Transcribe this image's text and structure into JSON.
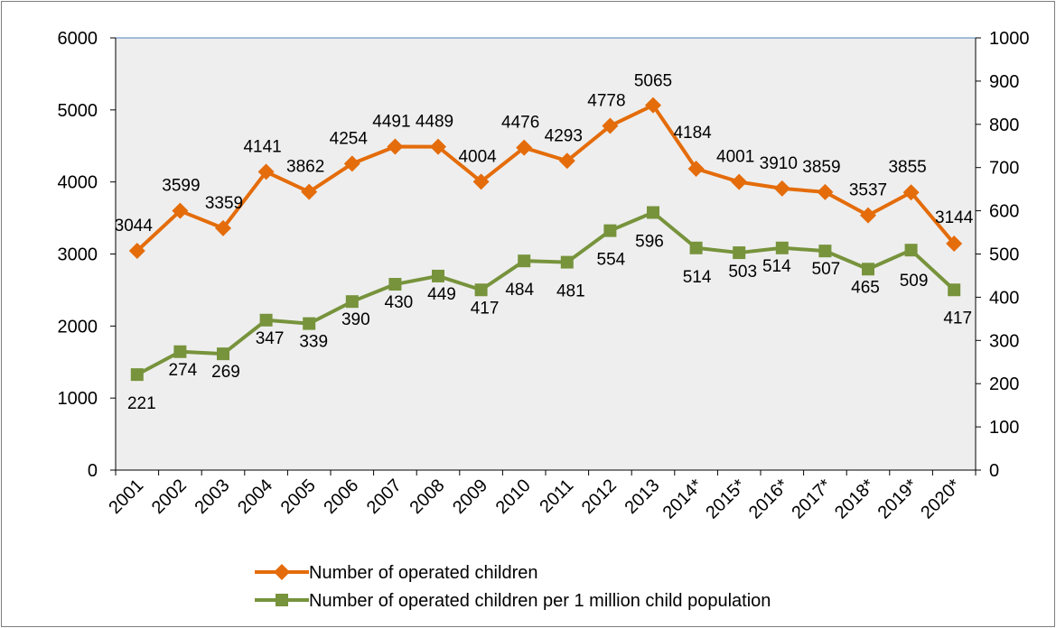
{
  "chart_data": {
    "type": "line",
    "title": "",
    "xlabel": "",
    "ylabel": "",
    "y2label": "",
    "categories": [
      "2001",
      "2002",
      "2003",
      "2004",
      "2005",
      "2006",
      "2007",
      "2008",
      "2009",
      "2010",
      "2011",
      "2012",
      "2013",
      "2014*",
      "2015*",
      "2016*",
      "2017*",
      "2018*",
      "2019*",
      "2020*"
    ],
    "ylim": [
      0,
      6000
    ],
    "yticks": [
      0,
      1000,
      2000,
      3000,
      4000,
      5000,
      6000
    ],
    "y2lim": [
      0,
      1000
    ],
    "y2ticks": [
      0,
      100,
      200,
      300,
      400,
      500,
      600,
      700,
      800,
      900,
      1000
    ],
    "grid": false,
    "plot_background": "#eeeeee",
    "legend_position": "bottom",
    "series": [
      {
        "name": "Number of operated children",
        "axis": "left",
        "color": "#e46c0a",
        "marker": "diamond",
        "values": [
          3044,
          3599,
          3359,
          4141,
          3862,
          4254,
          4491,
          4489,
          4004,
          4476,
          4293,
          4778,
          5065,
          4184,
          4001,
          3910,
          3859,
          3537,
          3855,
          3144
        ]
      },
      {
        "name": "Number of operated children per 1 million child population",
        "axis": "right",
        "color": "#77933c",
        "marker": "square",
        "values": [
          221,
          274,
          269,
          347,
          339,
          390,
          430,
          449,
          417,
          484,
          481,
          554,
          596,
          514,
          503,
          514,
          507,
          465,
          509,
          417
        ]
      }
    ]
  }
}
